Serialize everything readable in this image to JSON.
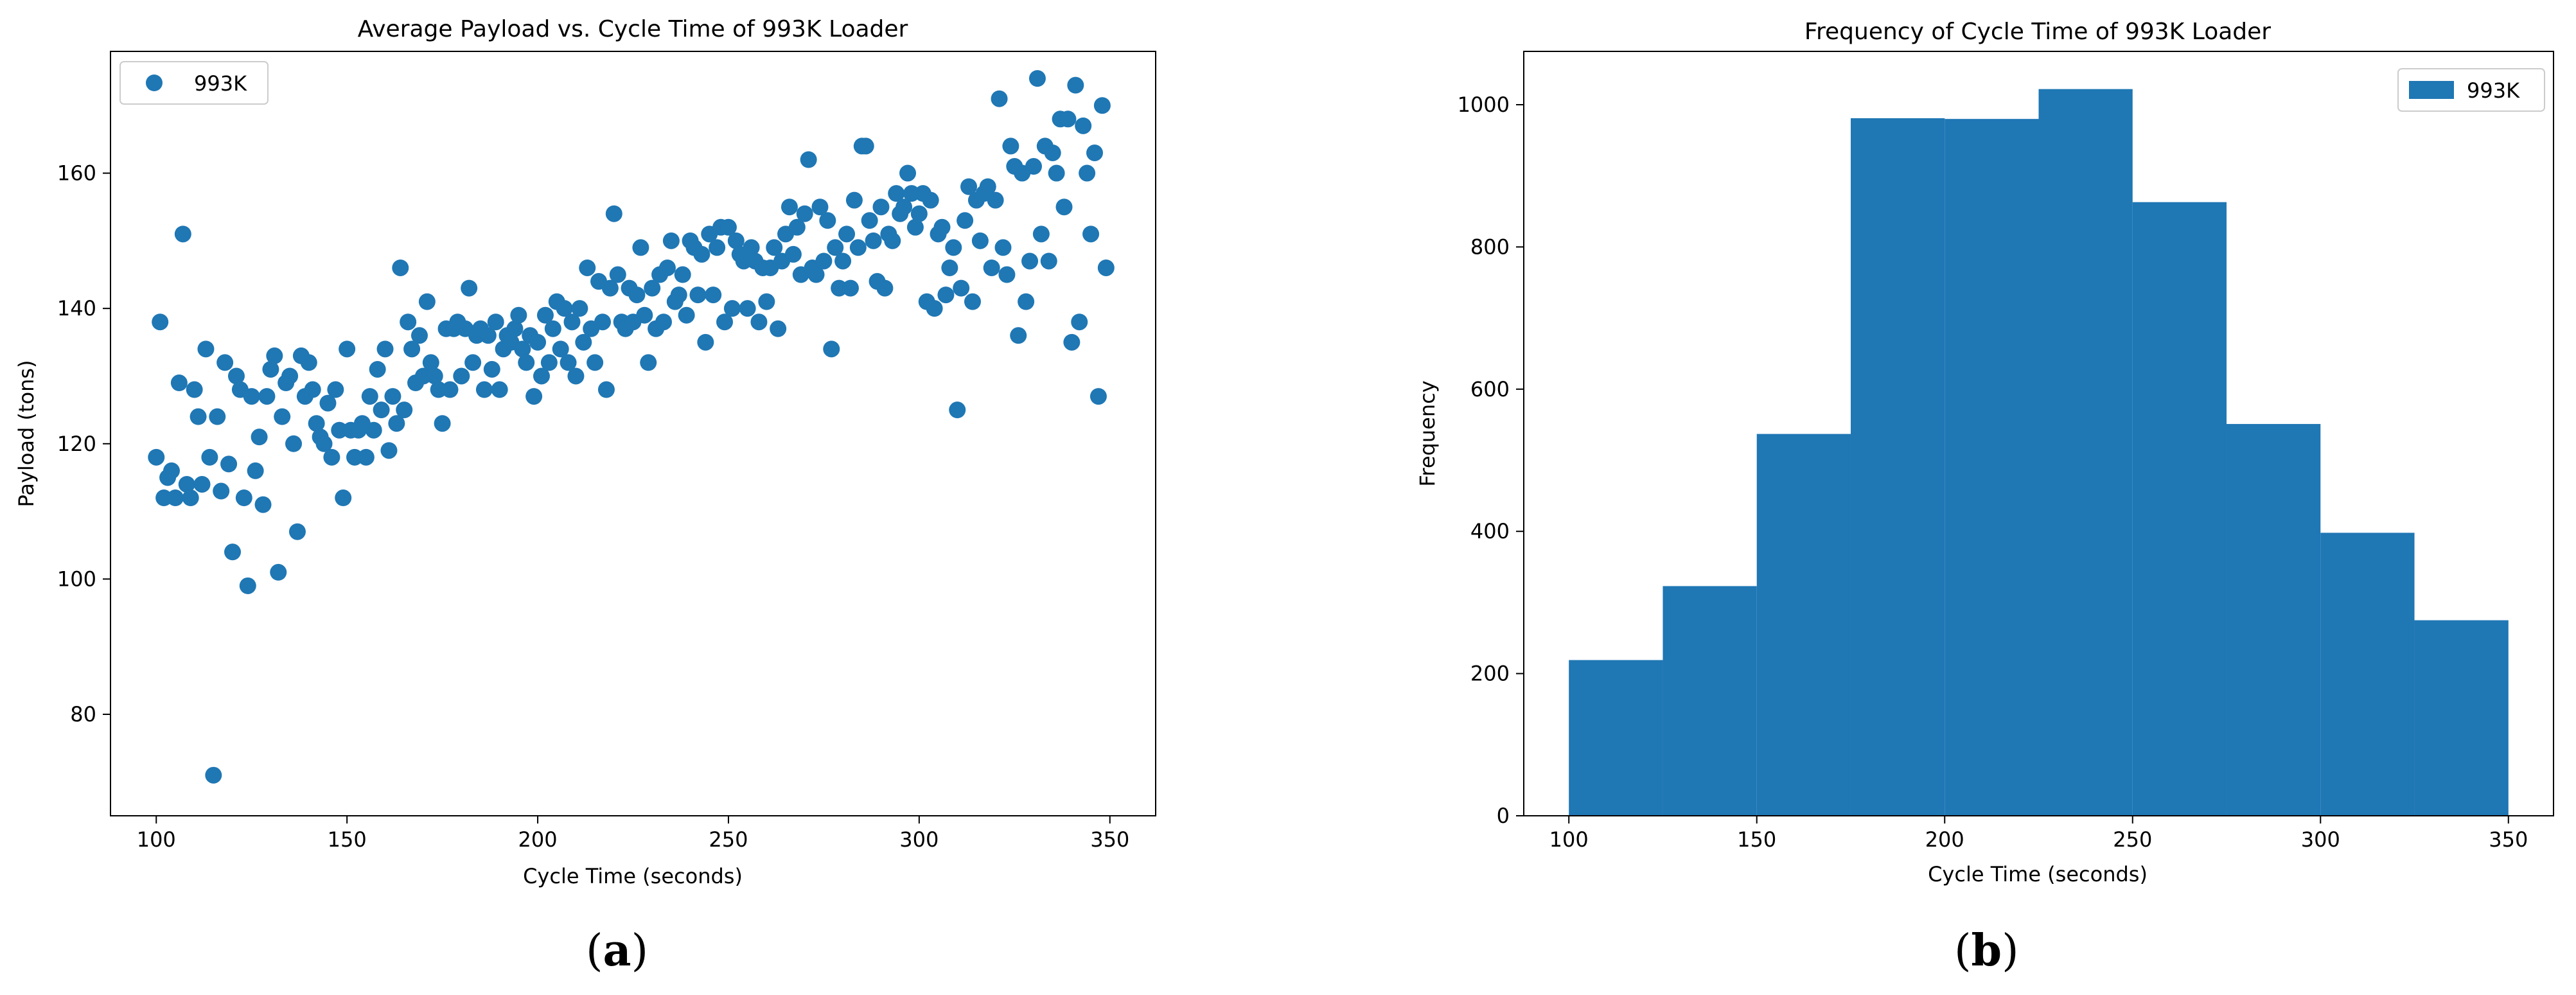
{
  "chart_data": [
    {
      "type": "scatter",
      "panel_label": "a",
      "title": "Average Payload vs. Cycle Time of 993K Loader",
      "xlabel": "Cycle Time (seconds)",
      "ylabel": "Payload (tons)",
      "xlim": [
        88,
        362
      ],
      "ylim": [
        65,
        178
      ],
      "xticks": [
        100,
        150,
        200,
        250,
        300,
        350
      ],
      "yticks": [
        80,
        100,
        120,
        140,
        160
      ],
      "grid": false,
      "legend": "top-left",
      "color": "#1f77b4",
      "series": [
        {
          "name": "993K",
          "points": [
            [
              100,
              118
            ],
            [
              101,
              138
            ],
            [
              102,
              112
            ],
            [
              103,
              115
            ],
            [
              104,
              116
            ],
            [
              105,
              112
            ],
            [
              106,
              129
            ],
            [
              107,
              151
            ],
            [
              108,
              114
            ],
            [
              109,
              112
            ],
            [
              110,
              128
            ],
            [
              111,
              124
            ],
            [
              112,
              114
            ],
            [
              113,
              134
            ],
            [
              114,
              118
            ],
            [
              115,
              71
            ],
            [
              116,
              124
            ],
            [
              117,
              113
            ],
            [
              118,
              132
            ],
            [
              119,
              117
            ],
            [
              120,
              104
            ],
            [
              121,
              130
            ],
            [
              122,
              128
            ],
            [
              123,
              112
            ],
            [
              124,
              99
            ],
            [
              125,
              127
            ],
            [
              126,
              116
            ],
            [
              127,
              121
            ],
            [
              128,
              111
            ],
            [
              129,
              127
            ],
            [
              130,
              131
            ],
            [
              131,
              133
            ],
            [
              132,
              101
            ],
            [
              133,
              124
            ],
            [
              134,
              129
            ],
            [
              135,
              130
            ],
            [
              136,
              120
            ],
            [
              137,
              107
            ],
            [
              138,
              133
            ],
            [
              139,
              127
            ],
            [
              140,
              132
            ],
            [
              141,
              128
            ],
            [
              142,
              123
            ],
            [
              143,
              121
            ],
            [
              144,
              120
            ],
            [
              145,
              126
            ],
            [
              146,
              118
            ],
            [
              147,
              128
            ],
            [
              148,
              122
            ],
            [
              149,
              112
            ],
            [
              150,
              134
            ],
            [
              151,
              122
            ],
            [
              152,
              118
            ],
            [
              153,
              122
            ],
            [
              154,
              123
            ],
            [
              155,
              118
            ],
            [
              156,
              127
            ],
            [
              157,
              122
            ],
            [
              158,
              131
            ],
            [
              159,
              125
            ],
            [
              160,
              134
            ],
            [
              161,
              119
            ],
            [
              162,
              127
            ],
            [
              163,
              123
            ],
            [
              164,
              146
            ],
            [
              165,
              125
            ],
            [
              166,
              138
            ],
            [
              167,
              134
            ],
            [
              168,
              129
            ],
            [
              169,
              136
            ],
            [
              170,
              130
            ],
            [
              171,
              141
            ],
            [
              172,
              132
            ],
            [
              173,
              130
            ],
            [
              174,
              128
            ],
            [
              175,
              123
            ],
            [
              176,
              137
            ],
            [
              177,
              128
            ],
            [
              178,
              137
            ],
            [
              179,
              138
            ],
            [
              180,
              130
            ],
            [
              181,
              137
            ],
            [
              182,
              143
            ],
            [
              183,
              132
            ],
            [
              184,
              136
            ],
            [
              185,
              137
            ],
            [
              186,
              128
            ],
            [
              187,
              136
            ],
            [
              188,
              131
            ],
            [
              189,
              138
            ],
            [
              190,
              128
            ],
            [
              191,
              134
            ],
            [
              192,
              136
            ],
            [
              193,
              135
            ],
            [
              194,
              137
            ],
            [
              195,
              139
            ],
            [
              196,
              134
            ],
            [
              197,
              132
            ],
            [
              198,
              136
            ],
            [
              199,
              127
            ],
            [
              200,
              135
            ],
            [
              201,
              130
            ],
            [
              202,
              139
            ],
            [
              203,
              132
            ],
            [
              204,
              137
            ],
            [
              205,
              141
            ],
            [
              206,
              134
            ],
            [
              207,
              140
            ],
            [
              208,
              132
            ],
            [
              209,
              138
            ],
            [
              210,
              130
            ],
            [
              211,
              140
            ],
            [
              212,
              135
            ],
            [
              213,
              146
            ],
            [
              214,
              137
            ],
            [
              215,
              132
            ],
            [
              216,
              144
            ],
            [
              217,
              138
            ],
            [
              218,
              128
            ],
            [
              219,
              143
            ],
            [
              220,
              154
            ],
            [
              221,
              145
            ],
            [
              222,
              138
            ],
            [
              223,
              137
            ],
            [
              224,
              143
            ],
            [
              225,
              138
            ],
            [
              226,
              142
            ],
            [
              227,
              149
            ],
            [
              228,
              139
            ],
            [
              229,
              132
            ],
            [
              230,
              143
            ],
            [
              231,
              137
            ],
            [
              232,
              145
            ],
            [
              233,
              138
            ],
            [
              234,
              146
            ],
            [
              235,
              150
            ],
            [
              236,
              141
            ],
            [
              237,
              142
            ],
            [
              238,
              145
            ],
            [
              239,
              139
            ],
            [
              240,
              150
            ],
            [
              241,
              149
            ],
            [
              242,
              142
            ],
            [
              243,
              148
            ],
            [
              244,
              135
            ],
            [
              245,
              151
            ],
            [
              246,
              142
            ],
            [
              247,
              149
            ],
            [
              248,
              152
            ],
            [
              249,
              138
            ],
            [
              250,
              152
            ],
            [
              251,
              140
            ],
            [
              252,
              150
            ],
            [
              253,
              148
            ],
            [
              254,
              147
            ],
            [
              255,
              140
            ],
            [
              256,
              149
            ],
            [
              257,
              147
            ],
            [
              258,
              138
            ],
            [
              259,
              146
            ],
            [
              260,
              141
            ],
            [
              261,
              146
            ],
            [
              262,
              149
            ],
            [
              263,
              137
            ],
            [
              264,
              147
            ],
            [
              265,
              151
            ],
            [
              266,
              155
            ],
            [
              267,
              148
            ],
            [
              268,
              152
            ],
            [
              269,
              145
            ],
            [
              270,
              154
            ],
            [
              271,
              162
            ],
            [
              272,
              146
            ],
            [
              273,
              145
            ],
            [
              274,
              155
            ],
            [
              275,
              147
            ],
            [
              276,
              153
            ],
            [
              277,
              134
            ],
            [
              278,
              149
            ],
            [
              279,
              143
            ],
            [
              280,
              147
            ],
            [
              281,
              151
            ],
            [
              282,
              143
            ],
            [
              283,
              156
            ],
            [
              284,
              149
            ],
            [
              285,
              164
            ],
            [
              286,
              164
            ],
            [
              287,
              153
            ],
            [
              288,
              150
            ],
            [
              289,
              144
            ],
            [
              290,
              155
            ],
            [
              291,
              143
            ],
            [
              292,
              151
            ],
            [
              293,
              150
            ],
            [
              294,
              157
            ],
            [
              295,
              154
            ],
            [
              296,
              155
            ],
            [
              297,
              160
            ],
            [
              298,
              157
            ],
            [
              299,
              152
            ],
            [
              300,
              154
            ],
            [
              301,
              157
            ],
            [
              302,
              141
            ],
            [
              303,
              156
            ],
            [
              304,
              140
            ],
            [
              305,
              151
            ],
            [
              306,
              152
            ],
            [
              307,
              142
            ],
            [
              308,
              146
            ],
            [
              309,
              149
            ],
            [
              310,
              125
            ],
            [
              311,
              143
            ],
            [
              312,
              153
            ],
            [
              313,
              158
            ],
            [
              314,
              141
            ],
            [
              315,
              156
            ],
            [
              316,
              150
            ],
            [
              317,
              157
            ],
            [
              318,
              158
            ],
            [
              319,
              146
            ],
            [
              320,
              156
            ],
            [
              321,
              171
            ],
            [
              322,
              149
            ],
            [
              323,
              145
            ],
            [
              324,
              164
            ],
            [
              325,
              161
            ],
            [
              326,
              136
            ],
            [
              327,
              160
            ],
            [
              328,
              141
            ],
            [
              329,
              147
            ],
            [
              330,
              161
            ],
            [
              331,
              174
            ],
            [
              332,
              151
            ],
            [
              333,
              164
            ],
            [
              334,
              147
            ],
            [
              335,
              163
            ],
            [
              336,
              160
            ],
            [
              337,
              168
            ],
            [
              338,
              155
            ],
            [
              339,
              168
            ],
            [
              340,
              135
            ],
            [
              341,
              173
            ],
            [
              342,
              138
            ],
            [
              343,
              167
            ],
            [
              344,
              160
            ],
            [
              345,
              151
            ],
            [
              346,
              163
            ],
            [
              347,
              127
            ],
            [
              348,
              170
            ],
            [
              349,
              146
            ]
          ]
        }
      ]
    },
    {
      "type": "bar",
      "chart_subtype": "histogram",
      "panel_label": "b",
      "title": "Frequency of Cycle Time of 993K Loader",
      "xlabel": "Cycle Time (seconds)",
      "ylabel": "Frequency",
      "xlim": [
        88,
        362
      ],
      "ylim": [
        0,
        1075
      ],
      "xticks": [
        100,
        150,
        200,
        250,
        300,
        350
      ],
      "yticks": [
        0,
        200,
        400,
        600,
        800,
        1000
      ],
      "grid": false,
      "legend": "top-right",
      "color": "#1f77b4",
      "bin_edges": [
        100,
        125,
        150,
        175,
        200,
        225,
        250,
        275,
        300,
        325,
        350
      ],
      "series": [
        {
          "name": "993K",
          "values": [
            219,
            323,
            537,
            981,
            980,
            1022,
            863,
            551,
            398,
            275
          ]
        }
      ]
    }
  ]
}
